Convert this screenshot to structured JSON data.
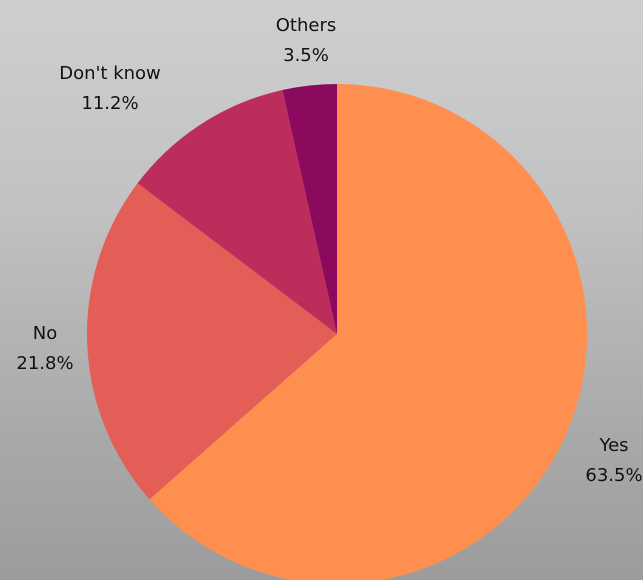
{
  "chart_data": {
    "type": "pie",
    "title": "",
    "slices": [
      {
        "label": "Yes",
        "value": 63.5,
        "value_label": "63.5%",
        "color": "#FF8F4F"
      },
      {
        "label": "No",
        "value": 21.8,
        "value_label": "21.8%",
        "color": "#E35E56"
      },
      {
        "label": "Don't know",
        "value": 11.2,
        "value_label": "11.2%",
        "color": "#BC2D5B"
      },
      {
        "label": "Others",
        "value": 3.5,
        "value_label": "3.5%",
        "color": "#8B0A5E"
      }
    ],
    "start_angle": "12 o'clock",
    "direction": "clockwise",
    "legend": "none"
  }
}
